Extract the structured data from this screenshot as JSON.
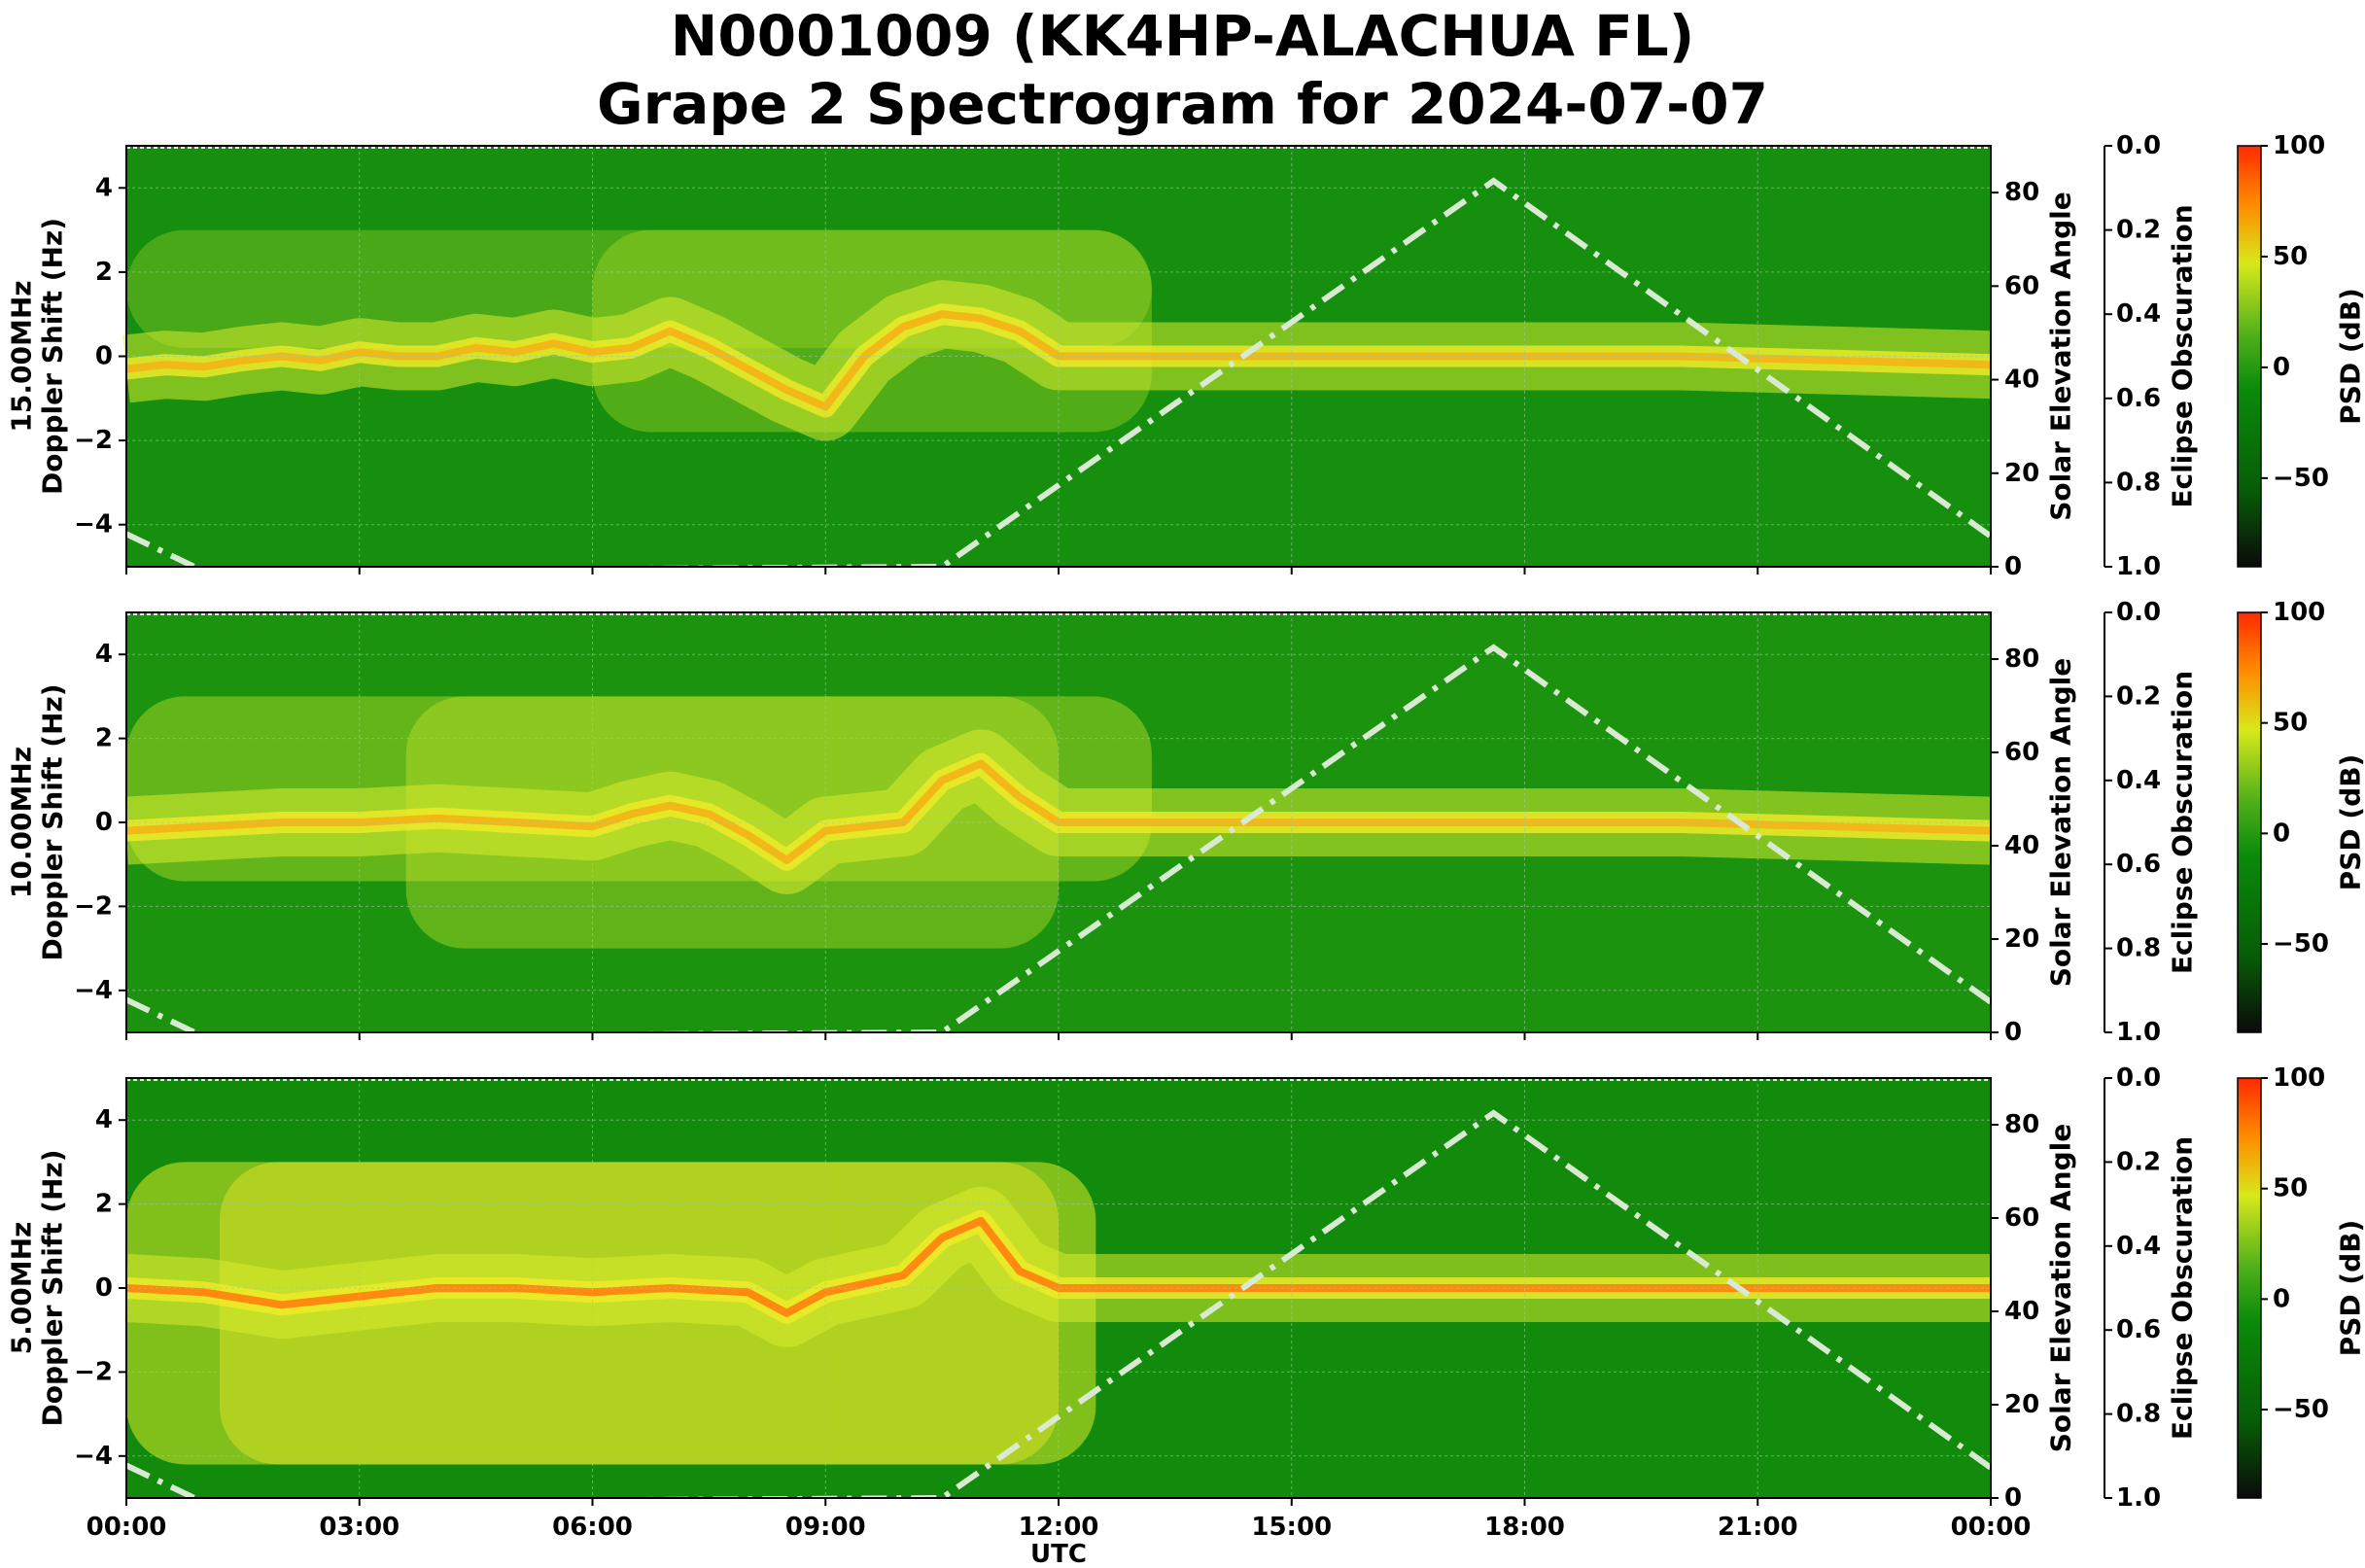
{
  "title_line1": "N0001009 (KK4HP-ALACHUA FL)",
  "title_line2": "Grape 2 Spectrogram for 2024-07-07",
  "colors": {
    "cmap": [
      "#0a0a0a",
      "#075c07",
      "#0a8a0a",
      "#4fb01a",
      "#d8e81a",
      "#ff8c00",
      "#ff2a00"
    ],
    "sun_line": "#d9ead3",
    "grid": "#9acd9a"
  },
  "chart_data": [
    {
      "type": "heatmap",
      "panel": "15.00MHz",
      "ylabel": "15.00MHz\nDoppler Shift (Hz)",
      "ylim": [
        -5,
        5
      ],
      "y_ticks": [
        4,
        2,
        0,
        -2,
        -4
      ],
      "y_tick_labels": [
        "4",
        "2",
        "0",
        "−2",
        "−4"
      ],
      "x_ticks": [
        "00:00",
        "03:00",
        "06:00",
        "09:00",
        "12:00",
        "15:00",
        "18:00",
        "21:00",
        "00:00"
      ],
      "right_axis_1": {
        "label": "Solar Elevation Angle",
        "ylim": [
          0,
          90
        ],
        "ticks": [
          0,
          20,
          40,
          60,
          80
        ]
      },
      "right_axis_2": {
        "label": "Eclipse Obscuration",
        "ylim": [
          1.0,
          0.0
        ],
        "ticks": [
          "0.0",
          "0.2",
          "0.4",
          "0.6",
          "0.8",
          "1.0"
        ]
      },
      "colorbar": {
        "label": "PSD (dB)",
        "range": [
          -90,
          100
        ],
        "ticks": [
          "100",
          "50",
          "0",
          "−50"
        ]
      },
      "trace": [
        [
          0,
          -0.3
        ],
        [
          0.5,
          -0.2
        ],
        [
          1,
          -0.25
        ],
        [
          1.5,
          -0.1
        ],
        [
          2,
          0.0
        ],
        [
          2.5,
          -0.1
        ],
        [
          3,
          0.1
        ],
        [
          3.5,
          0.0
        ],
        [
          4,
          0.0
        ],
        [
          4.5,
          0.2
        ],
        [
          5,
          0.1
        ],
        [
          5.5,
          0.3
        ],
        [
          6,
          0.1
        ],
        [
          6.5,
          0.2
        ],
        [
          7,
          0.6
        ],
        [
          7.5,
          0.2
        ],
        [
          8,
          -0.3
        ],
        [
          8.5,
          -0.8
        ],
        [
          9,
          -1.2
        ],
        [
          9.5,
          0.0
        ],
        [
          10,
          0.7
        ],
        [
          10.5,
          1.0
        ],
        [
          11,
          0.9
        ],
        [
          11.5,
          0.6
        ],
        [
          12,
          0.0
        ],
        [
          13,
          0.0
        ],
        [
          14,
          0.0
        ],
        [
          16,
          0.0
        ],
        [
          18,
          0.0
        ],
        [
          20,
          0.0
        ],
        [
          22,
          -0.1
        ],
        [
          24,
          -0.2
        ]
      ],
      "solar_elevation": [
        [
          0,
          7.0
        ],
        [
          1,
          -1
        ],
        [
          10.5,
          0
        ],
        [
          17.6,
          82.5
        ],
        [
          24,
          6.5
        ]
      ]
    },
    {
      "type": "heatmap",
      "panel": "10.00MHz",
      "ylabel": "10.00MHz\nDoppler Shift (Hz)",
      "ylim": [
        -5,
        5
      ],
      "y_ticks": [
        4,
        2,
        0,
        -2,
        -4
      ],
      "y_tick_labels": [
        "4",
        "2",
        "0",
        "−2",
        "−4"
      ],
      "x_ticks": [
        "00:00",
        "03:00",
        "06:00",
        "09:00",
        "12:00",
        "15:00",
        "18:00",
        "21:00",
        "00:00"
      ],
      "right_axis_1": {
        "label": "Solar Elevation Angle",
        "ylim": [
          0,
          90
        ],
        "ticks": [
          0,
          20,
          40,
          60,
          80
        ]
      },
      "right_axis_2": {
        "label": "Eclipse Obscuration",
        "ylim": [
          1.0,
          0.0
        ],
        "ticks": [
          "0.0",
          "0.2",
          "0.4",
          "0.6",
          "0.8",
          "1.0"
        ]
      },
      "colorbar": {
        "label": "PSD (dB)",
        "range": [
          -90,
          100
        ],
        "ticks": [
          "100",
          "50",
          "0",
          "−50"
        ]
      },
      "trace": [
        [
          0,
          -0.2
        ],
        [
          1,
          -0.1
        ],
        [
          2,
          0.0
        ],
        [
          3,
          0.0
        ],
        [
          4,
          0.1
        ],
        [
          5,
          0.0
        ],
        [
          6,
          -0.1
        ],
        [
          6.5,
          0.2
        ],
        [
          7,
          0.4
        ],
        [
          7.5,
          0.2
        ],
        [
          8,
          -0.3
        ],
        [
          8.5,
          -0.9
        ],
        [
          9,
          -0.2
        ],
        [
          10,
          0.0
        ],
        [
          10.5,
          1.0
        ],
        [
          11,
          1.4
        ],
        [
          11.5,
          0.6
        ],
        [
          12,
          0.0
        ],
        [
          14,
          0.0
        ],
        [
          16,
          0.0
        ],
        [
          18,
          0.0
        ],
        [
          20,
          0.0
        ],
        [
          22,
          -0.1
        ],
        [
          24,
          -0.2
        ]
      ],
      "solar_elevation": [
        [
          0,
          7.0
        ],
        [
          1,
          -1
        ],
        [
          10.5,
          0
        ],
        [
          17.6,
          82.5
        ],
        [
          24,
          6.5
        ]
      ]
    },
    {
      "type": "heatmap",
      "panel": "5.00MHz",
      "ylabel": "5.00MHz\nDoppler Shift (Hz)",
      "ylim": [
        -5,
        5
      ],
      "y_ticks": [
        4,
        2,
        0,
        -2,
        -4
      ],
      "y_tick_labels": [
        "4",
        "2",
        "0",
        "−2",
        "−4"
      ],
      "x_ticks": [
        "00:00",
        "03:00",
        "06:00",
        "09:00",
        "12:00",
        "15:00",
        "18:00",
        "21:00",
        "00:00"
      ],
      "xlabel": "UTC",
      "right_axis_1": {
        "label": "Solar Elevation Angle",
        "ylim": [
          0,
          90
        ],
        "ticks": [
          0,
          20,
          40,
          60,
          80
        ]
      },
      "right_axis_2": {
        "label": "Eclipse Obscuration",
        "ylim": [
          1.0,
          0.0
        ],
        "ticks": [
          "0.0",
          "0.2",
          "0.4",
          "0.6",
          "0.8",
          "1.0"
        ]
      },
      "colorbar": {
        "label": "PSD (dB)",
        "range": [
          -90,
          100
        ],
        "ticks": [
          "100",
          "50",
          "0",
          "−50"
        ]
      },
      "trace": [
        [
          0,
          0.0
        ],
        [
          1,
          -0.1
        ],
        [
          2,
          -0.4
        ],
        [
          3,
          -0.2
        ],
        [
          4,
          0.0
        ],
        [
          5,
          0.0
        ],
        [
          6,
          -0.1
        ],
        [
          7,
          0.0
        ],
        [
          8,
          -0.1
        ],
        [
          8.5,
          -0.6
        ],
        [
          9,
          -0.1
        ],
        [
          10,
          0.3
        ],
        [
          10.5,
          1.2
        ],
        [
          11,
          1.6
        ],
        [
          11.5,
          0.4
        ],
        [
          12,
          0.0
        ],
        [
          15,
          0.0
        ],
        [
          18,
          0.0
        ],
        [
          21,
          0.0
        ],
        [
          24,
          0.0
        ]
      ],
      "solar_elevation": [
        [
          0,
          7.0
        ],
        [
          1,
          -1
        ],
        [
          10.5,
          0
        ],
        [
          17.6,
          82.5
        ],
        [
          24,
          6.5
        ]
      ]
    }
  ]
}
